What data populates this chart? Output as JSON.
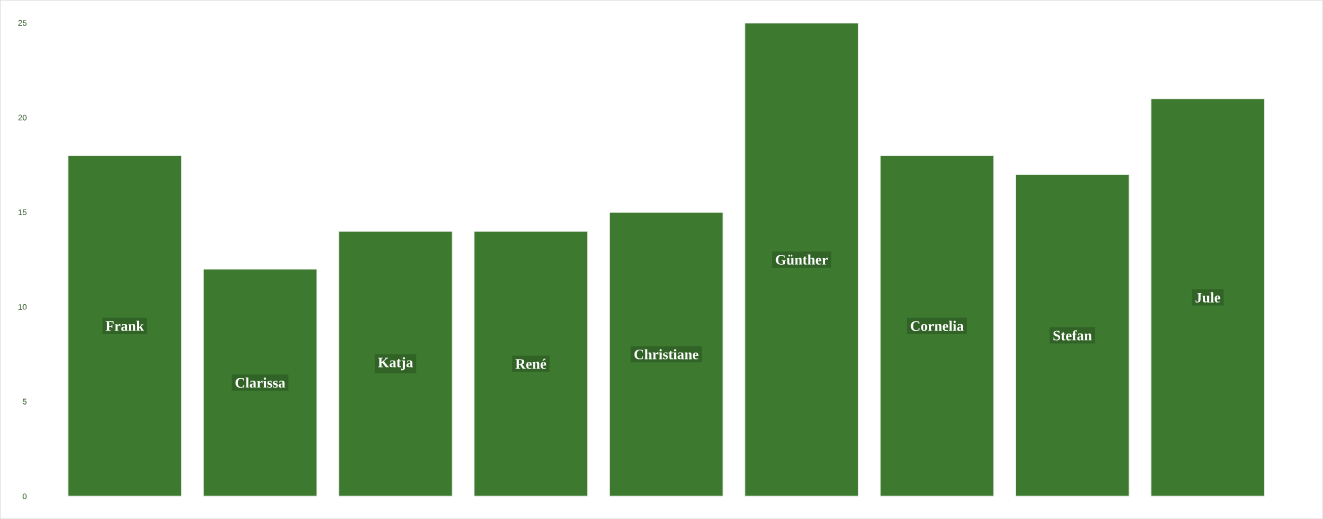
{
  "chart_data": {
    "type": "bar",
    "categories": [
      "Frank",
      "Clarissa",
      "Katja",
      "René",
      "Christiane",
      "Günther",
      "Cornelia",
      "Stefan",
      "Jule"
    ],
    "values": [
      18,
      12,
      14,
      14,
      15,
      25,
      18,
      17,
      21
    ],
    "color": "#3d7a30",
    "ylim": [
      -1.2,
      26.2
    ],
    "yticks": [
      0,
      5,
      10,
      15,
      20,
      25
    ],
    "tick_labels": "y"
  }
}
